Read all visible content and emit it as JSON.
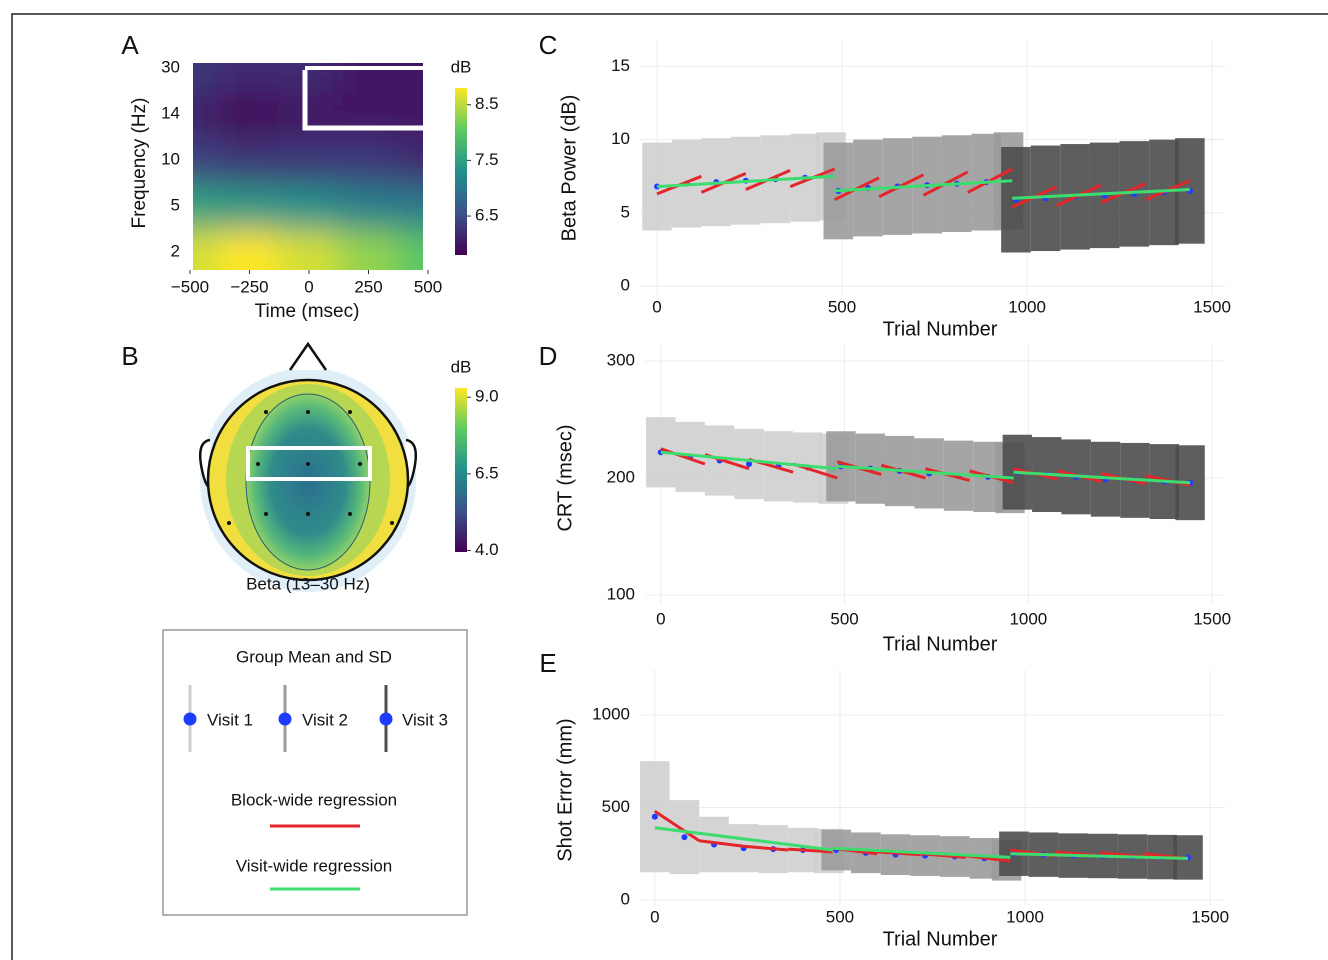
{
  "legend_title": "Group Mean and SD",
  "chart_data": [
    {
      "type": "heatmap",
      "panel": "A",
      "xlabel": "Time (msec)",
      "ylabel": "Frequency (Hz)",
      "x": [
        -500,
        -250,
        0,
        250,
        500
      ],
      "categories": [
        "2",
        "5",
        "10",
        "14",
        "30"
      ],
      "z": [
        [
          8.6,
          8.8,
          8.6,
          8.3,
          8.0
        ],
        [
          7.5,
          7.4,
          7.3,
          7.1,
          7.0
        ],
        [
          6.4,
          6.3,
          6.3,
          6.3,
          6.2
        ],
        [
          6.1,
          5.9,
          6.0,
          6.0,
          6.0
        ],
        [
          6.3,
          6.2,
          6.2,
          6.0,
          6.0
        ]
      ],
      "xlim": [
        -500,
        500
      ],
      "xticks": [
        {
          "value": -500,
          "label": "−500"
        },
        {
          "value": -250,
          "label": "−250"
        },
        0,
        250,
        500
      ],
      "colorbar_label": "dB",
      "clim": [
        5.8,
        8.8
      ],
      "cticks": [
        6.5,
        7.5,
        8.5
      ]
    },
    {
      "type": "topomap",
      "panel": "B",
      "title": "Beta (13–30 Hz)",
      "colorbar_label": "dB",
      "clim": [
        3.95,
        9.3
      ],
      "cticks": [
        {
          "value": 4,
          "label": "4.0"
        },
        6.5,
        {
          "value": 9,
          "label": "9.0"
        }
      ]
    },
    {
      "type": "line",
      "panel": "C",
      "xlabel": "Trial Number",
      "ylabel": "Beta Power (dB)",
      "xlim": [
        -46,
        1535
      ],
      "xticks": [
        0,
        500,
        1000,
        1500
      ],
      "ylim": [
        -0.6,
        16.8
      ],
      "yticks": [
        0,
        5,
        10,
        15
      ],
      "grid": true,
      "series": [
        {
          "name": "Visit 1",
          "type": "errorbar",
          "color": "#cfcfcf",
          "marker_color": "#1e3cff",
          "x": [
            0,
            80,
            160,
            240,
            320,
            400,
            470
          ],
          "values": [
            6.8,
            7.0,
            7.1,
            7.2,
            7.3,
            7.4,
            7.5
          ],
          "sd": [
            3.0,
            3.0,
            3.0,
            3.0,
            3.0,
            3.0,
            3.0
          ]
        },
        {
          "name": "Visit 2",
          "type": "errorbar",
          "color": "#9b9b9b",
          "marker_color": "#1e3cff",
          "x": [
            490,
            570,
            650,
            730,
            810,
            890,
            950
          ],
          "values": [
            6.5,
            6.7,
            6.8,
            6.9,
            7.0,
            7.1,
            7.2
          ],
          "sd": [
            3.3,
            3.3,
            3.3,
            3.3,
            3.3,
            3.3,
            3.3
          ]
        },
        {
          "name": "Visit 3",
          "type": "errorbar",
          "color": "#4d4d4d",
          "marker_color": "#1e3cff",
          "x": [
            970,
            1050,
            1130,
            1210,
            1290,
            1370,
            1440
          ],
          "values": [
            5.9,
            6.0,
            6.1,
            6.2,
            6.3,
            6.4,
            6.5
          ],
          "sd": [
            3.6,
            3.6,
            3.6,
            3.6,
            3.6,
            3.6,
            3.6
          ]
        },
        {
          "name": "Block-wide regression",
          "type": "line",
          "color": "#e3262b",
          "x": [
            0,
            120,
            120,
            120,
            240,
            240,
            240,
            360,
            360,
            360,
            480,
            480,
            480,
            600,
            600,
            600,
            720,
            720,
            720,
            840,
            840,
            840,
            960,
            960,
            960,
            1080,
            1080,
            1080,
            1200,
            1200,
            1200,
            1320,
            1320,
            1320,
            1440
          ],
          "values": [
            6.3,
            7.5,
            null,
            6.4,
            7.7,
            null,
            6.6,
            7.9,
            null,
            6.8,
            8.0,
            null,
            5.9,
            7.4,
            null,
            6.1,
            7.6,
            null,
            6.2,
            7.8,
            null,
            6.4,
            8.0,
            null,
            5.4,
            6.8,
            null,
            5.5,
            6.9,
            null,
            5.7,
            7.0,
            null,
            5.9,
            7.2
          ]
        },
        {
          "name": "Visit-wide regression",
          "type": "line",
          "color": "#3ddc6e",
          "x": [
            0,
            480,
            480,
            480,
            960,
            960,
            960,
            1440
          ],
          "values": [
            6.8,
            7.5,
            null,
            6.5,
            7.2,
            null,
            6.0,
            6.6
          ]
        }
      ]
    },
    {
      "type": "line",
      "panel": "D",
      "xlabel": "Trial Number",
      "ylabel": "CRT (msec)",
      "xlim": [
        -43,
        1535
      ],
      "xticks": [
        0,
        500,
        1000,
        1500
      ],
      "ylim": [
        91.5,
        313.7
      ],
      "yticks": [
        100,
        200,
        300
      ],
      "grid": true,
      "series": [
        {
          "type": "errorbar",
          "color": "#cfcfcf",
          "marker_color": "#1e3cff",
          "x": [
            0,
            80,
            160,
            240,
            320,
            400,
            470
          ],
          "values": [
            222,
            218,
            215,
            212,
            210,
            209,
            208
          ],
          "sd": [
            30,
            30,
            30,
            30,
            30,
            30,
            30
          ]
        },
        {
          "type": "errorbar",
          "color": "#9b9b9b",
          "marker_color": "#1e3cff",
          "x": [
            490,
            570,
            650,
            730,
            810,
            890,
            950
          ],
          "values": [
            210,
            208,
            206,
            204,
            202,
            201,
            200
          ],
          "sd": [
            30,
            30,
            30,
            30,
            30,
            30,
            30
          ]
        },
        {
          "type": "errorbar",
          "color": "#4d4d4d",
          "marker_color": "#1e3cff",
          "x": [
            970,
            1050,
            1130,
            1210,
            1290,
            1370,
            1440
          ],
          "values": [
            205,
            203,
            201,
            199,
            198,
            197,
            196
          ],
          "sd": [
            32,
            32,
            32,
            32,
            32,
            32,
            32
          ]
        },
        {
          "type": "line",
          "color": "#e3262b",
          "x": [
            0,
            120,
            120,
            120,
            240,
            240,
            240,
            360,
            360,
            360,
            480,
            480,
            480,
            600,
            600,
            600,
            720,
            720,
            720,
            840,
            840,
            840,
            960,
            960,
            960,
            1080,
            1080,
            1080,
            1200,
            1200,
            1200,
            1320,
            1320,
            1320,
            1440
          ],
          "values": [
            225,
            212,
            null,
            220,
            208,
            null,
            216,
            205,
            null,
            212,
            200,
            null,
            214,
            203,
            null,
            211,
            200,
            null,
            208,
            198,
            null,
            206,
            196,
            null,
            208,
            199,
            null,
            206,
            197,
            null,
            204,
            195,
            null,
            202,
            194
          ]
        },
        {
          "type": "line",
          "color": "#3ddc6e",
          "x": [
            0,
            480,
            480,
            480,
            960,
            960,
            960,
            1440
          ],
          "values": [
            222,
            208,
            null,
            210,
            200,
            null,
            205,
            196
          ]
        }
      ]
    },
    {
      "type": "line",
      "panel": "E",
      "xlabel": "Trial Number",
      "ylabel": "Shot Error (mm)",
      "xlim": [
        -40,
        1540
      ],
      "xticks": [
        0,
        500,
        1000,
        1500
      ],
      "ylim": [
        -27,
        1243
      ],
      "yticks": [
        0,
        500,
        1000
      ],
      "grid": true,
      "series": [
        {
          "type": "errorbar",
          "color": "#cfcfcf",
          "marker_color": "#1e3cff",
          "x": [
            0,
            80,
            160,
            240,
            320,
            400,
            470
          ],
          "values": [
            450,
            340,
            300,
            280,
            275,
            270,
            265
          ],
          "sd": [
            300,
            200,
            150,
            130,
            130,
            120,
            120
          ]
        },
        {
          "type": "errorbar",
          "color": "#9b9b9b",
          "marker_color": "#1e3cff",
          "x": [
            490,
            570,
            650,
            730,
            810,
            890,
            950
          ],
          "values": [
            270,
            255,
            245,
            240,
            235,
            225,
            215
          ],
          "sd": [
            110,
            110,
            110,
            110,
            110,
            110,
            110
          ]
        },
        {
          "type": "errorbar",
          "color": "#4d4d4d",
          "marker_color": "#1e3cff",
          "x": [
            970,
            1050,
            1130,
            1210,
            1290,
            1370,
            1440
          ],
          "values": [
            250,
            245,
            240,
            238,
            235,
            232,
            230
          ],
          "sd": [
            120,
            120,
            120,
            120,
            120,
            120,
            120
          ]
        },
        {
          "type": "line",
          "color": "#e3262b",
          "x": [
            0,
            120,
            120,
            120,
            240,
            240,
            240,
            360,
            360,
            360,
            480,
            480,
            480,
            600,
            600,
            600,
            720,
            720,
            720,
            840,
            840,
            840,
            960,
            960,
            960,
            1080,
            1080,
            1080,
            1200,
            1200,
            1200,
            1320,
            1320,
            1320,
            1440
          ],
          "values": [
            480,
            320,
            null,
            320,
            290,
            null,
            290,
            270,
            null,
            275,
            260,
            null,
            280,
            250,
            null,
            260,
            245,
            null,
            250,
            230,
            null,
            240,
            210,
            null,
            270,
            240,
            null,
            260,
            240,
            null,
            255,
            235,
            null,
            250,
            225
          ]
        },
        {
          "type": "line",
          "color": "#3ddc6e",
          "x": [
            0,
            480,
            480,
            480,
            960,
            960,
            960,
            1440
          ],
          "values": [
            390,
            270,
            null,
            280,
            230,
            null,
            250,
            225
          ]
        }
      ]
    }
  ]
}
